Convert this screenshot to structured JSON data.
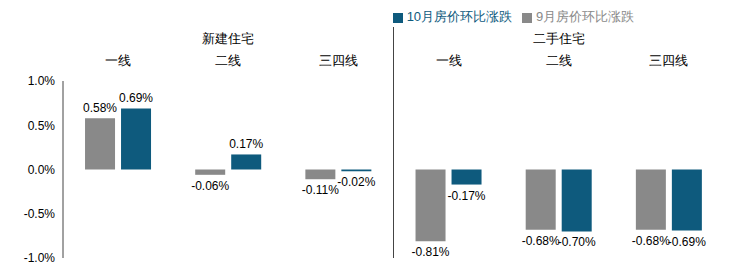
{
  "chart_data": {
    "type": "bar",
    "categories": [
      "一线",
      "二线",
      "三四线",
      "一线",
      "二线",
      "三四线"
    ],
    "category_groups": [
      "新建住宅",
      "新建住宅",
      "新建住宅",
      "二手住宅",
      "二手住宅",
      "二手住宅"
    ],
    "series": [
      {
        "name": "9月房价环比涨跌",
        "color": "#898989",
        "values": [
          0.58,
          -0.06,
          -0.11,
          -0.81,
          -0.68,
          -0.68
        ],
        "value_labels": [
          "0.58%",
          "-0.06%",
          "-0.11%",
          "-0.81%",
          "-0.68%",
          "-0.68%"
        ]
      },
      {
        "name": "10月房价环比涨跌",
        "color": "#0e5a7d",
        "values": [
          0.69,
          0.17,
          -0.02,
          -0.17,
          -0.7,
          -0.69
        ],
        "value_labels": [
          "0.69%",
          "0.17%",
          "-0.02%",
          "-0.17%",
          "-0.70%",
          "-0.69%"
        ]
      }
    ],
    "ylim": [
      -1,
      1
    ],
    "yticks": [
      {
        "value": -1,
        "label": "-1.0%"
      },
      {
        "value": -0.5,
        "label": "-0.5%"
      },
      {
        "value": 0,
        "label": "0.0%"
      },
      {
        "value": 0.5,
        "label": "0.5%"
      },
      {
        "value": 1,
        "label": "1.0%"
      }
    ],
    "grid": false,
    "legend": "top",
    "data_labels": true
  }
}
